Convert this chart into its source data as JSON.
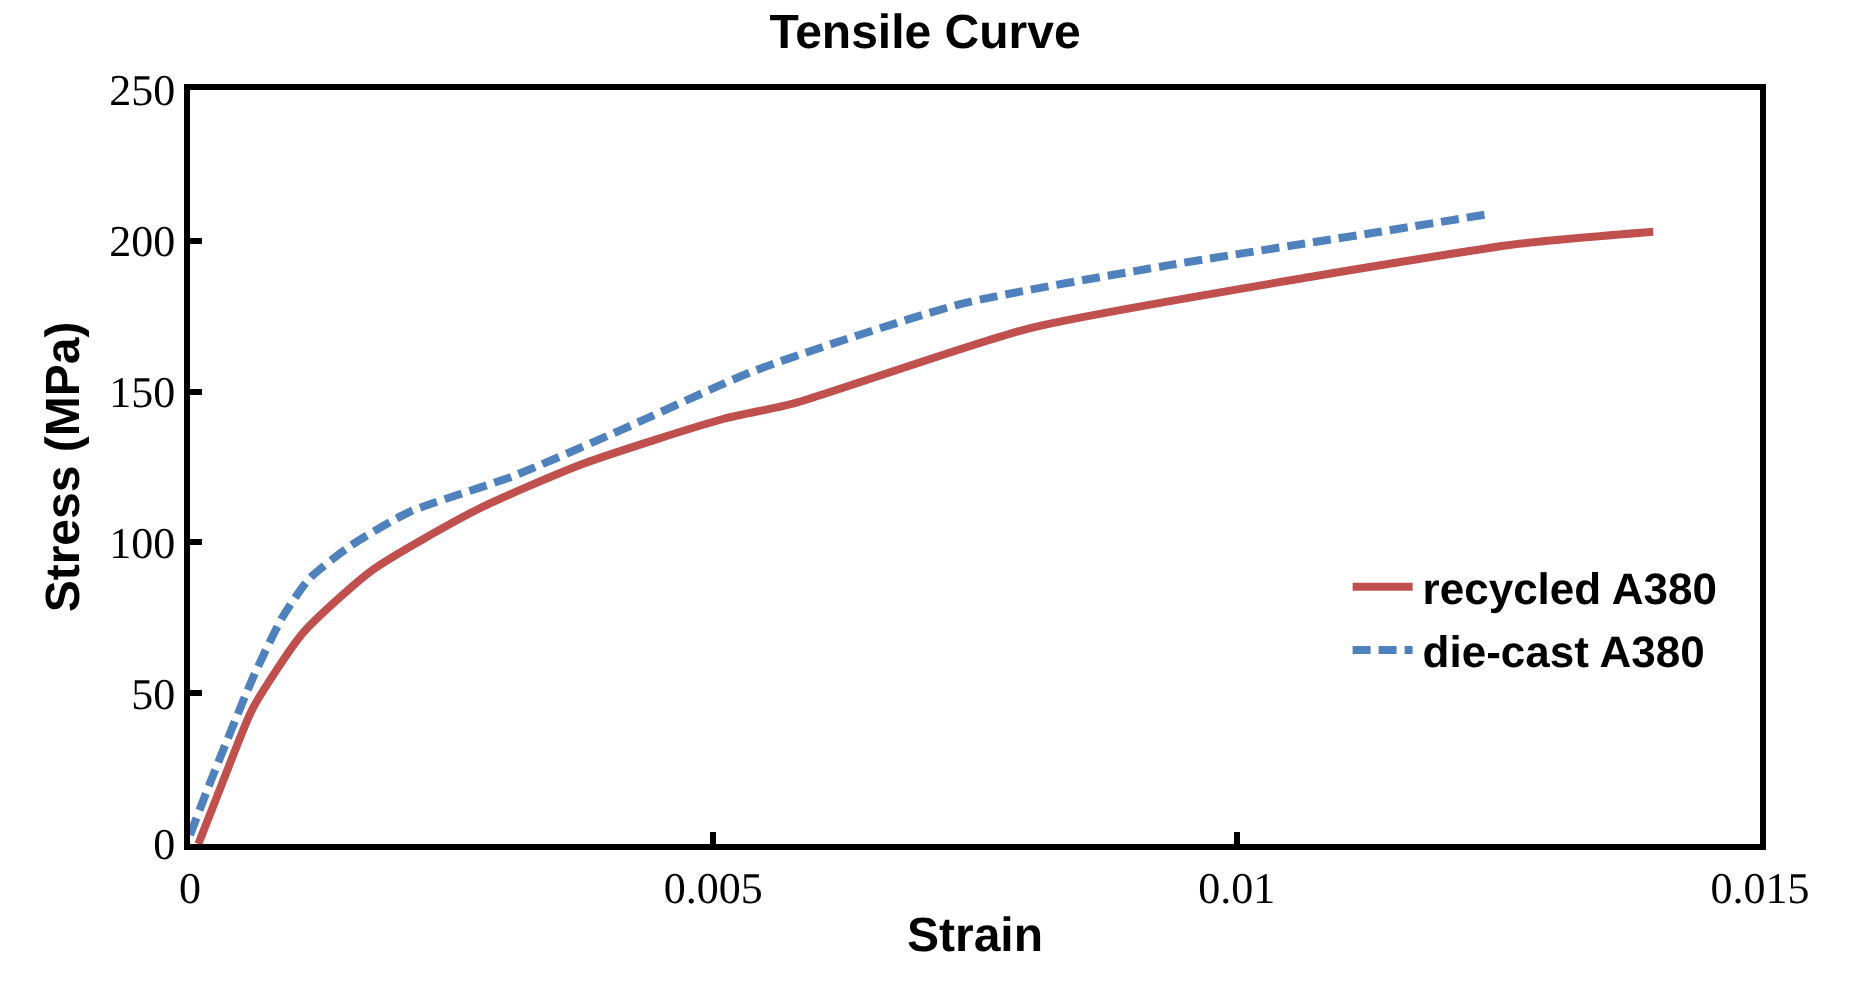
{
  "chart_data": {
    "type": "line",
    "title": "Tensile Curve",
    "xlabel": "Strain",
    "ylabel": "Stress (MPa)",
    "xlim": [
      0,
      0.015
    ],
    "xticks": [
      0,
      0.005,
      0.01,
      0.015
    ],
    "ylim": [
      0,
      250
    ],
    "yticks": [
      0,
      50,
      100,
      150,
      200,
      250
    ],
    "legend": "bottom right",
    "marker": "none",
    "series": [
      {
        "name": "recycled A380",
        "color": "#c0504d",
        "line_style": "solid",
        "x": [
          8e-05,
          0.00034,
          0.0006,
          0.00108,
          0.00175,
          0.00275,
          0.00375,
          0.0051,
          0.00576,
          0.00802,
          0.0107,
          0.0127,
          0.01398
        ],
        "values": [
          0,
          23,
          45,
          70,
          91,
          111,
          126,
          141,
          146,
          171,
          188,
          199,
          203
        ]
      },
      {
        "name": "die-cast A380",
        "color": "#4f81bd",
        "line_style": "dashed",
        "x": [
          0,
          0.0002,
          0.0006,
          0.00088,
          0.00114,
          0.00154,
          0.00209,
          0.00309,
          0.0041,
          0.0054,
          0.00736,
          0.00937,
          0.01137,
          0.01243
        ],
        "values": [
          3,
          21,
          55,
          75,
          88,
          99,
          110,
          122,
          137,
          157,
          179,
          192,
          203,
          209
        ]
      }
    ]
  }
}
